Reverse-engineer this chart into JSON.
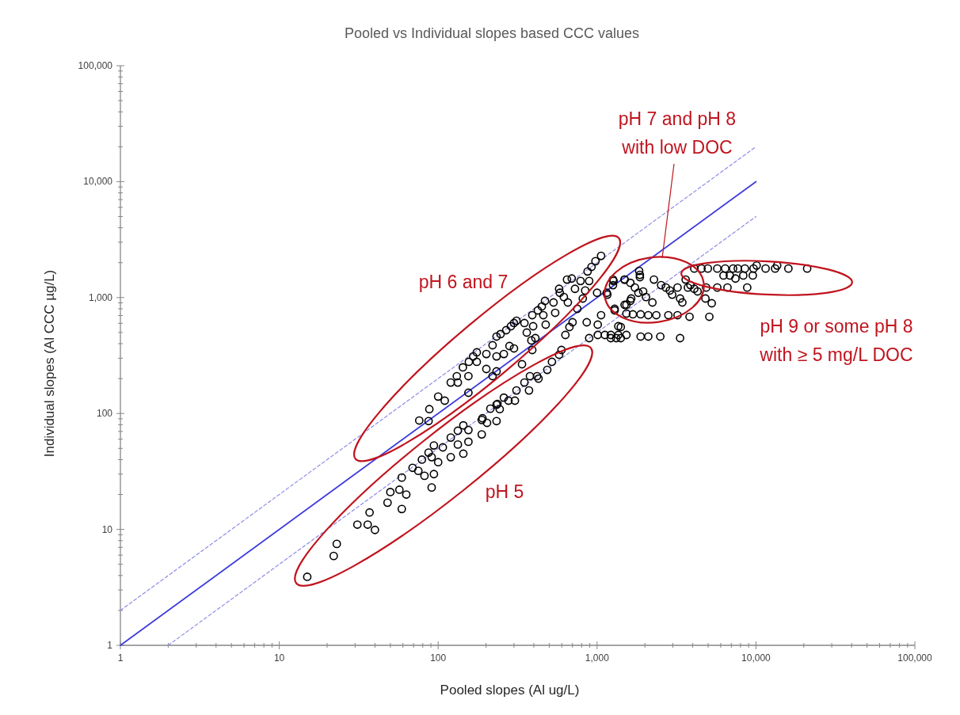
{
  "chart_data": {
    "type": "scatter",
    "title": "Pooled vs Individual slopes based CCC values",
    "xlabel": "Pooled slopes (Al  ug/L)",
    "ylabel": "Individual slopes (Al CCC µg/L)",
    "log": "xy",
    "grid": false,
    "xlim": [
      1,
      100000
    ],
    "ylim": [
      1,
      100000
    ],
    "xticks": [
      1,
      10,
      100,
      {
        "value": 1000,
        "label": "1,000"
      },
      {
        "value": 10000,
        "label": "10,000"
      },
      {
        "value": 100000,
        "label": "100,000"
      },
      {
        "value": 2,
        "label": null
      },
      {
        "value": 3,
        "label": null
      },
      {
        "value": 4,
        "label": null
      },
      {
        "value": 5,
        "label": null
      },
      {
        "value": 6,
        "label": null
      },
      {
        "value": 7,
        "label": null
      },
      {
        "value": 8,
        "label": null
      },
      {
        "value": 9,
        "label": null
      },
      {
        "value": 20,
        "label": null
      },
      {
        "value": 30,
        "label": null
      },
      {
        "value": 40,
        "label": null
      },
      {
        "value": 50,
        "label": null
      },
      {
        "value": 60,
        "label": null
      },
      {
        "value": 70,
        "label": null
      },
      {
        "value": 80,
        "label": null
      },
      {
        "value": 90,
        "label": null
      },
      {
        "value": 200,
        "label": null
      },
      {
        "value": 300,
        "label": null
      },
      {
        "value": 400,
        "label": null
      },
      {
        "value": 500,
        "label": null
      },
      {
        "value": 600,
        "label": null
      },
      {
        "value": 700,
        "label": null
      },
      {
        "value": 800,
        "label": null
      },
      {
        "value": 900,
        "label": null
      },
      {
        "value": 2000,
        "label": null
      },
      {
        "value": 3000,
        "label": null
      },
      {
        "value": 4000,
        "label": null
      },
      {
        "value": 5000,
        "label": null
      },
      {
        "value": 6000,
        "label": null
      },
      {
        "value": 7000,
        "label": null
      },
      {
        "value": 8000,
        "label": null
      },
      {
        "value": 9000,
        "label": null
      },
      {
        "value": 20000,
        "label": null
      },
      {
        "value": 30000,
        "label": null
      },
      {
        "value": 40000,
        "label": null
      },
      {
        "value": 50000,
        "label": null
      },
      {
        "value": 60000,
        "label": null
      },
      {
        "value": 70000,
        "label": null
      },
      {
        "value": 80000,
        "label": null
      },
      {
        "value": 90000,
        "label": null
      }
    ],
    "yticks": [
      1,
      10,
      100,
      {
        "value": 1000,
        "label": "1,000"
      },
      {
        "value": 10000,
        "label": "10,000"
      },
      {
        "value": 100000,
        "label": "100,000"
      },
      {
        "value": 2,
        "label": null
      },
      {
        "value": 3,
        "label": null
      },
      {
        "value": 4,
        "label": null
      },
      {
        "value": 5,
        "label": null
      },
      {
        "value": 6,
        "label": null
      },
      {
        "value": 7,
        "label": null
      },
      {
        "value": 8,
        "label": null
      },
      {
        "value": 9,
        "label": null
      },
      {
        "value": 20,
        "label": null
      },
      {
        "value": 30,
        "label": null
      },
      {
        "value": 40,
        "label": null
      },
      {
        "value": 50,
        "label": null
      },
      {
        "value": 60,
        "label": null
      },
      {
        "value": 70,
        "label": null
      },
      {
        "value": 80,
        "label": null
      },
      {
        "value": 90,
        "label": null
      },
      {
        "value": 200,
        "label": null
      },
      {
        "value": 300,
        "label": null
      },
      {
        "value": 400,
        "label": null
      },
      {
        "value": 500,
        "label": null
      },
      {
        "value": 600,
        "label": null
      },
      {
        "value": 700,
        "label": null
      },
      {
        "value": 800,
        "label": null
      },
      {
        "value": 900,
        "label": null
      },
      {
        "value": 2000,
        "label": null
      },
      {
        "value": 3000,
        "label": null
      },
      {
        "value": 4000,
        "label": null
      },
      {
        "value": 5000,
        "label": null
      },
      {
        "value": 6000,
        "label": null
      },
      {
        "value": 7000,
        "label": null
      },
      {
        "value": 8000,
        "label": null
      },
      {
        "value": 9000,
        "label": null
      },
      {
        "value": 20000,
        "label": null
      },
      {
        "value": 30000,
        "label": null
      },
      {
        "value": 40000,
        "label": null
      },
      {
        "value": 50000,
        "label": null
      },
      {
        "value": 60000,
        "label": null
      },
      {
        "value": 70000,
        "label": null
      },
      {
        "value": 80000,
        "label": null
      },
      {
        "value": 90000,
        "label": null
      }
    ],
    "annotations": [
      "pH 7 and pH 8\nwith low DOC",
      "pH 6 and 7",
      "pH 9 or some pH 8\nwith ≥ 5 mg/L DOC",
      "pH 5"
    ],
    "series": [
      {
        "type": "line",
        "color": "#3c3cdc",
        "line_style": "solid",
        "x": [
          1,
          10000
        ],
        "values": [
          1,
          10000
        ]
      },
      {
        "type": "line",
        "color": "#8c8ce6",
        "line_style": "dashed",
        "x": [
          1,
          10000
        ],
        "values": [
          2,
          20000
        ]
      },
      {
        "type": "line",
        "color": "#8c8ce6",
        "line_style": "dashed",
        "x": [
          2,
          10000
        ],
        "values": [
          1,
          5000
        ]
      },
      {
        "color": "#000000",
        "marker": "circle",
        "x": [
          15,
          22,
          23,
          31,
          36,
          40,
          37,
          48,
          59,
          50,
          57,
          63,
          59,
          91,
          69,
          75,
          82,
          94,
          79,
          87,
          91,
          94,
          107,
          100,
          120,
          120,
          133,
          133,
          144,
          155,
          155,
          144,
          188,
          188,
          203,
          233,
          213,
          233,
          244,
          277,
          304,
          190,
          236,
          259,
          311,
          349,
          378,
          373,
          419,
          428,
          486,
          520,
          577,
          597,
          337,
          76,
          87,
          88,
          100,
          110,
          155,
          120,
          133,
          131,
          143,
          155,
          156,
          166,
          175,
          175,
          201,
          201,
          220,
          233,
          220,
          233,
          247,
          233,
          259,
          268,
          281,
          300,
          287,
          300,
          311,
          349,
          361,
          386,
          391,
          409,
          396,
          391,
          424,
          459,
          475,
          449,
          470,
          545,
          532,
          577,
          583,
          618,
          647,
          693,
          726,
          655,
          787,
          872,
          923,
          977,
          1060,
          842,
          813,
          751,
          701,
          670,
          632,
          861,
          1010,
          1060,
          892,
          1000,
          1160,
          1270,
          1290,
          1490,
          1490,
          1620,
          892,
          1010,
          1120,
          1220,
          1360,
          1530,
          1410,
          1260,
          1260,
          1490,
          1620,
          1840,
          1860,
          1860,
          1730,
          1820,
          1950,
          2030,
          2230,
          1640,
          1530,
          2280,
          2530,
          2710,
          2870,
          2970,
          3210,
          3330,
          3440,
          3730,
          3870,
          4090,
          4290,
          3610,
          4810,
          5270,
          5090,
          3820,
          3210,
          2810,
          2360,
          2100,
          1880,
          1680,
          1530,
          1290,
          1150,
          1360,
          1220,
          1320,
          1410,
          1880,
          2100,
          2500,
          3330,
          4090,
          4540,
          4980,
          5710,
          6400,
          7180,
          7690,
          8520,
          9660,
          10100,
          11500,
          13200,
          13600,
          16000,
          21000,
          6250,
          6850,
          7430,
          8320,
          9550,
          4860,
          5710,
          6620,
          8810
        ],
        "values": [
          3.9,
          5.9,
          7.5,
          11,
          11,
          9.9,
          14,
          17,
          15,
          21,
          22,
          20,
          28,
          23,
          34,
          32,
          29,
          30,
          40,
          46,
          42,
          53,
          51,
          38,
          42,
          62,
          54,
          71,
          79,
          72,
          57,
          45,
          66,
          88,
          83,
          86,
          110,
          119,
          109,
          129,
          129,
          91,
          121,
          137,
          158,
          185,
          210,
          158,
          210,
          200,
          238,
          279,
          321,
          353,
          266,
          87,
          86,
          109,
          140,
          129,
          151,
          185,
          185,
          210,
          250,
          210,
          279,
          311,
          337,
          279,
          326,
          242,
          210,
          231,
          388,
          461,
          484,
          311,
          326,
          523,
          382,
          364,
          566,
          603,
          631,
          603,
          499,
          427,
          353,
          447,
          566,
          705,
          775,
          705,
          584,
          838,
          936,
          739,
          907,
          1190,
          1100,
          1010,
          1430,
          1460,
          1190,
          907,
          1390,
          1680,
          1840,
          2060,
          2290,
          1150,
          981,
          800,
          612,
          557,
          476,
          612,
          584,
          705,
          1390,
          1100,
          1060,
          1390,
          775,
          1430,
          865,
          936,
          447,
          476,
          476,
          476,
          476,
          476,
          557,
          1430,
          1280,
          1430,
          1340,
          1700,
          1570,
          1500,
          1220,
          1100,
          1130,
          1010,
          907,
          981,
          865,
          1430,
          1280,
          1220,
          1150,
          1060,
          1220,
          981,
          907,
          1220,
          1280,
          1190,
          1130,
          1430,
          981,
          893,
          683,
          683,
          705,
          705,
          705,
          705,
          717,
          717,
          728,
          800,
          1100,
          566,
          447,
          447,
          447,
          461,
          461,
          461,
          447,
          1780,
          1780,
          1780,
          1780,
          1780,
          1780,
          1780,
          1780,
          1780,
          1890,
          1780,
          1780,
          1890,
          1780,
          1780,
          1550,
          1550,
          1460,
          1550,
          1550,
          1220,
          1220,
          1220,
          1220
        ]
      }
    ]
  }
}
